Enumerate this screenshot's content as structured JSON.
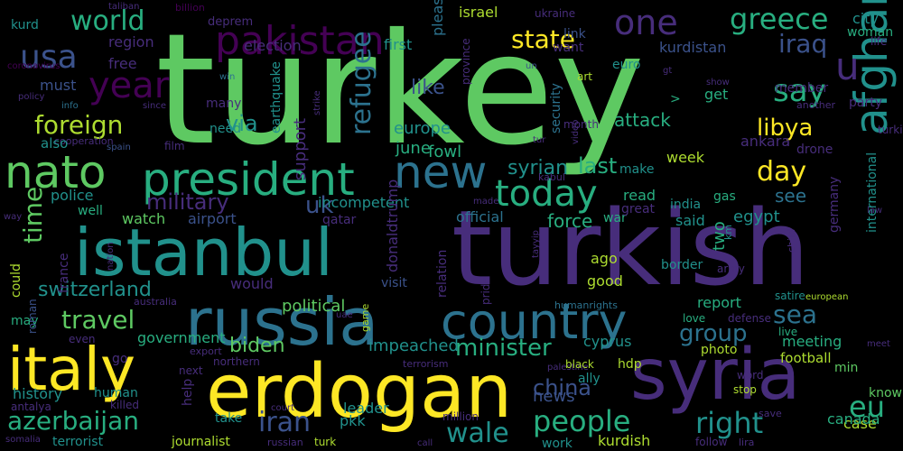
{
  "palette": {
    "background": "#000000",
    "purple": "#440154",
    "indigo": "#472d7b",
    "blue": "#3b528b",
    "steel": "#2c728e",
    "teal": "#21918c",
    "aqua": "#28ae80",
    "green": "#5ec962",
    "lime": "#addc30",
    "yellow": "#fde725"
  },
  "words": [
    {
      "text": "turkey",
      "color": "green"
    },
    {
      "text": "turkish",
      "color": "indigo"
    },
    {
      "text": "istanbul",
      "color": "teal"
    },
    {
      "text": "erdogan",
      "color": "yellow"
    },
    {
      "text": "russia",
      "color": "steel"
    },
    {
      "text": "syria",
      "color": "indigo"
    },
    {
      "text": "italy",
      "color": "yellow"
    },
    {
      "text": "country",
      "color": "steel"
    },
    {
      "text": "president",
      "color": "aqua"
    },
    {
      "text": "nato",
      "color": "green"
    },
    {
      "text": "new",
      "color": "steel"
    },
    {
      "text": "pakistan",
      "color": "purple"
    },
    {
      "text": "afghanistan",
      "color": "teal"
    },
    {
      "text": "today",
      "color": "aqua"
    },
    {
      "text": "u",
      "color": "indigo"
    },
    {
      "text": "usa",
      "color": "blue"
    },
    {
      "text": "year",
      "color": "purple"
    },
    {
      "text": "one",
      "color": "indigo"
    },
    {
      "text": "greece",
      "color": "aqua"
    },
    {
      "text": "world",
      "color": "aqua"
    },
    {
      "text": "say",
      "color": "aqua"
    },
    {
      "text": "state",
      "color": "yellow"
    },
    {
      "text": "iraq",
      "color": "blue"
    },
    {
      "text": "foreign",
      "color": "lime"
    },
    {
      "text": "refugee",
      "color": "steel"
    },
    {
      "text": "libya",
      "color": "yellow"
    },
    {
      "text": "day",
      "color": "yellow"
    },
    {
      "text": "minister",
      "color": "aqua"
    },
    {
      "text": "people",
      "color": "aqua"
    },
    {
      "text": "right",
      "color": "teal"
    },
    {
      "text": "azerbaijan",
      "color": "aqua"
    },
    {
      "text": "iran",
      "color": "blue"
    },
    {
      "text": "wale",
      "color": "teal"
    },
    {
      "text": "eu",
      "color": "aqua"
    },
    {
      "text": "travel",
      "color": "green"
    },
    {
      "text": "switzerland",
      "color": "teal"
    },
    {
      "text": "biden",
      "color": "green"
    },
    {
      "text": "time",
      "color": "green"
    },
    {
      "text": "military",
      "color": "indigo"
    },
    {
      "text": "uk",
      "color": "blue"
    },
    {
      "text": "sea",
      "color": "steel"
    },
    {
      "text": "group",
      "color": "steel"
    },
    {
      "text": "china",
      "color": "blue"
    },
    {
      "text": "syrian",
      "color": "teal"
    },
    {
      "text": "last",
      "color": "aqua"
    },
    {
      "text": "force",
      "color": "aqua"
    },
    {
      "text": "like",
      "color": "blue"
    },
    {
      "text": "attack",
      "color": "aqua"
    },
    {
      "text": "via",
      "color": "teal"
    },
    {
      "text": "support",
      "color": "indigo"
    },
    {
      "text": "europe",
      "color": "teal"
    },
    {
      "text": "june",
      "color": "aqua"
    },
    {
      "text": "fowl",
      "color": "aqua"
    },
    {
      "text": "election",
      "color": "indigo"
    },
    {
      "text": "first",
      "color": "teal"
    },
    {
      "text": "region",
      "color": "indigo"
    },
    {
      "text": "free",
      "color": "indigo"
    },
    {
      "text": "must",
      "color": "blue"
    },
    {
      "text": "kurdistan",
      "color": "blue"
    },
    {
      "text": "city",
      "color": "teal"
    },
    {
      "text": "woman",
      "color": "aqua"
    },
    {
      "text": "life",
      "color": "indigo"
    },
    {
      "text": "israel",
      "color": "lime"
    },
    {
      "text": "please",
      "color": "steel"
    },
    {
      "text": "ukraine",
      "color": "indigo"
    },
    {
      "text": "billion",
      "color": "purple"
    },
    {
      "text": "deprem",
      "color": "indigo"
    },
    {
      "text": "taliban",
      "color": "indigo"
    },
    {
      "text": "kurd",
      "color": "teal"
    },
    {
      "text": "coronavirus",
      "color": "purple"
    },
    {
      "text": "policy",
      "color": "indigo"
    },
    {
      "text": "info",
      "color": "steel"
    },
    {
      "text": "since",
      "color": "indigo"
    },
    {
      "text": "cooperation",
      "color": "indigo"
    },
    {
      "text": "also",
      "color": "teal"
    },
    {
      "text": "spain",
      "color": "blue"
    },
    {
      "text": "film",
      "color": "indigo"
    },
    {
      "text": "police",
      "color": "teal"
    },
    {
      "text": "incompetent",
      "color": "teal"
    },
    {
      "text": "airport",
      "color": "blue"
    },
    {
      "text": "watch",
      "color": "green"
    },
    {
      "text": "qatar",
      "color": "indigo"
    },
    {
      "text": "official",
      "color": "steel"
    },
    {
      "text": "war",
      "color": "aqua"
    },
    {
      "text": "said",
      "color": "teal"
    },
    {
      "text": "read",
      "color": "aqua"
    },
    {
      "text": "india",
      "color": "teal"
    },
    {
      "text": "egypt",
      "color": "teal"
    },
    {
      "text": "gas",
      "color": "aqua"
    },
    {
      "text": "germany",
      "color": "indigo"
    },
    {
      "text": "international",
      "color": "teal"
    },
    {
      "text": "ankara",
      "color": "indigo"
    },
    {
      "text": "drone",
      "color": "indigo"
    },
    {
      "text": "week",
      "color": "lime"
    },
    {
      "text": "make",
      "color": "teal"
    },
    {
      "text": "see",
      "color": "steel"
    },
    {
      "text": "two",
      "color": "aqua"
    },
    {
      "text": "km",
      "color": "teal"
    },
    {
      "text": "get",
      "color": "aqua"
    },
    {
      "text": "member",
      "color": "indigo"
    },
    {
      "text": "party",
      "color": "indigo"
    },
    {
      "text": "another",
      "color": "indigo"
    },
    {
      "text": "turkiye",
      "color": "indigo"
    },
    {
      "text": "security",
      "color": "steel"
    },
    {
      "text": "video",
      "color": "indigo"
    },
    {
      "text": "kabul",
      "color": "indigo"
    },
    {
      "text": "tur",
      "color": "indigo"
    },
    {
      "text": "month",
      "color": "indigo"
    },
    {
      "text": "strike",
      "color": "indigo"
    },
    {
      "text": "earthquake",
      "color": "teal"
    },
    {
      "text": "need",
      "color": "teal"
    },
    {
      "text": "many",
      "color": "indigo"
    },
    {
      "text": "win",
      "color": "steel"
    },
    {
      "text": "un",
      "color": "blue"
    },
    {
      "text": "gt",
      "color": "indigo"
    },
    {
      "text": "art",
      "color": "lime"
    },
    {
      "text": "show",
      "color": "indigo"
    },
    {
      "text": "euro",
      "color": "teal"
    },
    {
      "text": "want",
      "color": "indigo"
    },
    {
      "text": "link",
      "color": "blue"
    },
    {
      "text": "province",
      "color": "indigo"
    },
    {
      "text": "made",
      "color": "indigo"
    },
    {
      "text": "great",
      "color": "indigo"
    },
    {
      "text": "well",
      "color": "aqua"
    },
    {
      "text": "nation",
      "color": "indigo"
    },
    {
      "text": "way",
      "color": "indigo"
    },
    {
      "text": "could",
      "color": "lime"
    },
    {
      "text": "france",
      "color": "indigo"
    },
    {
      "text": "donaldtrump",
      "color": "indigo"
    },
    {
      "text": "relation",
      "color": "indigo"
    },
    {
      "text": "pride",
      "color": "indigo"
    },
    {
      "text": "tayyip",
      "color": "indigo"
    },
    {
      "text": "humanrights",
      "color": "steel"
    },
    {
      "text": "border",
      "color": "teal"
    },
    {
      "text": "army",
      "color": "indigo"
    },
    {
      "text": "ago",
      "color": "lime"
    },
    {
      "text": "good",
      "color": "lime"
    },
    {
      "text": "child",
      "color": "indigo"
    },
    {
      "text": "law",
      "color": "indigo"
    },
    {
      "text": "would",
      "color": "indigo"
    },
    {
      "text": "political",
      "color": "green"
    },
    {
      "text": "visit",
      "color": "blue"
    },
    {
      "text": "australia",
      "color": "indigo"
    },
    {
      "text": "report",
      "color": "aqua"
    },
    {
      "text": "satire",
      "color": "teal"
    },
    {
      "text": "european",
      "color": "lime"
    },
    {
      "text": "may",
      "color": "aqua"
    },
    {
      "text": "roman",
      "color": "blue"
    },
    {
      "text": "uae",
      "color": "indigo"
    },
    {
      "text": "game",
      "color": "lime"
    },
    {
      "text": "love",
      "color": "aqua"
    },
    {
      "text": "defense",
      "color": "indigo"
    },
    {
      "text": "government",
      "color": "aqua"
    },
    {
      "text": "even",
      "color": "indigo"
    },
    {
      "text": "impeached",
      "color": "teal"
    },
    {
      "text": "live",
      "color": "aqua"
    },
    {
      "text": "export",
      "color": "indigo"
    },
    {
      "text": "go",
      "color": "indigo"
    },
    {
      "text": "northern",
      "color": "indigo"
    },
    {
      "text": "terrorism",
      "color": "indigo"
    },
    {
      "text": "palestine",
      "color": "indigo"
    },
    {
      "text": "meeting",
      "color": "aqua"
    },
    {
      "text": "meet",
      "color": "indigo"
    },
    {
      "text": "photo",
      "color": "lime"
    },
    {
      "text": "cyprus",
      "color": "teal"
    },
    {
      "text": "football",
      "color": "lime"
    },
    {
      "text": "min",
      "color": "green"
    },
    {
      "text": "next",
      "color": "indigo"
    },
    {
      "text": "history",
      "color": "teal"
    },
    {
      "text": "human",
      "color": "teal"
    },
    {
      "text": "help",
      "color": "indigo"
    },
    {
      "text": "news",
      "color": "blue"
    },
    {
      "text": "hdp",
      "color": "lime"
    },
    {
      "text": "black",
      "color": "lime"
    },
    {
      "text": "ally",
      "color": "teal"
    },
    {
      "text": "word",
      "color": "indigo"
    },
    {
      "text": "stop",
      "color": "lime"
    },
    {
      "text": "know",
      "color": "green"
    },
    {
      "text": "antalya",
      "color": "indigo"
    },
    {
      "text": "killed",
      "color": "indigo"
    },
    {
      "text": "take",
      "color": "teal"
    },
    {
      "text": "court",
      "color": "indigo"
    },
    {
      "text": "million",
      "color": "indigo"
    },
    {
      "text": "pkk",
      "color": "teal"
    },
    {
      "text": "case",
      "color": "lime"
    },
    {
      "text": "leader",
      "color": "teal"
    },
    {
      "text": "save",
      "color": "indigo"
    },
    {
      "text": "canada",
      "color": "aqua"
    },
    {
      "text": "somalia",
      "color": "indigo"
    },
    {
      "text": "terrorist",
      "color": "teal"
    },
    {
      "text": "journalist",
      "color": "lime"
    },
    {
      "text": "russian",
      "color": "indigo"
    },
    {
      "text": "turk",
      "color": "lime"
    },
    {
      "text": "call",
      "color": "indigo"
    },
    {
      "text": "work",
      "color": "teal"
    },
    {
      "text": "kurdish",
      "color": "lime"
    },
    {
      "text": "follow",
      "color": "indigo"
    },
    {
      "text": "lira",
      "color": "indigo"
    },
    {
      "text": ">",
      "color": "aqua"
    }
  ]
}
